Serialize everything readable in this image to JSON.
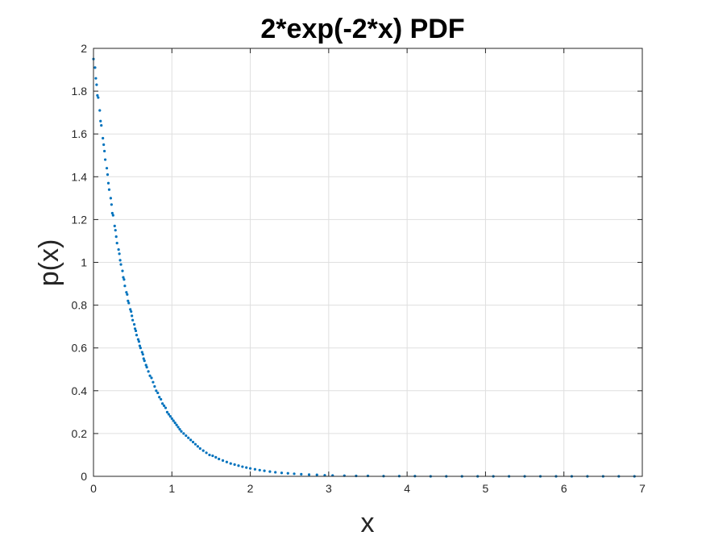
{
  "chart_data": {
    "type": "scatter",
    "title": "2*exp(-2*x) PDF",
    "xlabel": "x",
    "ylabel": "p(x)",
    "xlim": [
      0,
      7
    ],
    "ylim": [
      0,
      2
    ],
    "xticks": [
      0,
      1,
      2,
      3,
      4,
      5,
      6,
      7
    ],
    "yticks": [
      0,
      0.2,
      0.4,
      0.6,
      0.8,
      1,
      1.2,
      1.4,
      1.6,
      1.8,
      2
    ],
    "xtick_labels": [
      "0",
      "1",
      "2",
      "3",
      "4",
      "5",
      "6",
      "7"
    ],
    "ytick_labels": [
      "0",
      "0.2",
      "0.4",
      "0.6",
      "0.8",
      "1",
      "1.2",
      "1.4",
      "1.6",
      "1.8",
      "2"
    ],
    "grid": true,
    "legend": "none",
    "marker_color": "#0072BD",
    "series": [
      {
        "points": [
          [
            0.0,
            1.95
          ],
          [
            0.02,
            1.91
          ],
          [
            0.03,
            1.86
          ],
          [
            0.04,
            1.83
          ],
          [
            0.05,
            1.78
          ],
          [
            0.06,
            1.77
          ],
          [
            0.08,
            1.71
          ],
          [
            0.09,
            1.66
          ],
          [
            0.1,
            1.64
          ],
          [
            0.12,
            1.58
          ],
          [
            0.13,
            1.55
          ],
          [
            0.14,
            1.52
          ],
          [
            0.15,
            1.48
          ],
          [
            0.17,
            1.44
          ],
          [
            0.18,
            1.41
          ],
          [
            0.19,
            1.37
          ],
          [
            0.2,
            1.34
          ],
          [
            0.22,
            1.3
          ],
          [
            0.23,
            1.27
          ],
          [
            0.24,
            1.23
          ],
          [
            0.25,
            1.22
          ],
          [
            0.27,
            1.17
          ],
          [
            0.28,
            1.15
          ],
          [
            0.29,
            1.12
          ],
          [
            0.3,
            1.09
          ],
          [
            0.32,
            1.06
          ],
          [
            0.33,
            1.04
          ],
          [
            0.34,
            1.01
          ],
          [
            0.35,
            0.99
          ],
          [
            0.37,
            0.96
          ],
          [
            0.38,
            0.93
          ],
          [
            0.39,
            0.92
          ],
          [
            0.4,
            0.89
          ],
          [
            0.42,
            0.86
          ],
          [
            0.43,
            0.85
          ],
          [
            0.44,
            0.82
          ],
          [
            0.45,
            0.81
          ],
          [
            0.47,
            0.78
          ],
          [
            0.48,
            0.77
          ],
          [
            0.49,
            0.75
          ],
          [
            0.5,
            0.73
          ],
          [
            0.52,
            0.71
          ],
          [
            0.53,
            0.69
          ],
          [
            0.54,
            0.68
          ],
          [
            0.55,
            0.66
          ],
          [
            0.57,
            0.64
          ],
          [
            0.58,
            0.63
          ],
          [
            0.59,
            0.61
          ],
          [
            0.6,
            0.6
          ],
          [
            0.62,
            0.58
          ],
          [
            0.63,
            0.57
          ],
          [
            0.64,
            0.55
          ],
          [
            0.65,
            0.54
          ],
          [
            0.67,
            0.52
          ],
          [
            0.68,
            0.51
          ],
          [
            0.7,
            0.49
          ],
          [
            0.72,
            0.47
          ],
          [
            0.74,
            0.46
          ],
          [
            0.76,
            0.44
          ],
          [
            0.78,
            0.42
          ],
          [
            0.8,
            0.4
          ],
          [
            0.82,
            0.39
          ],
          [
            0.84,
            0.37
          ],
          [
            0.86,
            0.36
          ],
          [
            0.88,
            0.34
          ],
          [
            0.9,
            0.33
          ],
          [
            0.92,
            0.32
          ],
          [
            0.94,
            0.3
          ],
          [
            0.96,
            0.29
          ],
          [
            0.98,
            0.28
          ],
          [
            1.0,
            0.27
          ],
          [
            1.02,
            0.26
          ],
          [
            1.04,
            0.25
          ],
          [
            1.06,
            0.24
          ],
          [
            1.08,
            0.23
          ],
          [
            1.1,
            0.22
          ],
          [
            1.12,
            0.21
          ],
          [
            1.15,
            0.2
          ],
          [
            1.18,
            0.19
          ],
          [
            1.21,
            0.18
          ],
          [
            1.24,
            0.17
          ],
          [
            1.27,
            0.16
          ],
          [
            1.3,
            0.15
          ],
          [
            1.33,
            0.14
          ],
          [
            1.36,
            0.13
          ],
          [
            1.4,
            0.12
          ],
          [
            1.44,
            0.11
          ],
          [
            1.48,
            0.1
          ],
          [
            1.52,
            0.096
          ],
          [
            1.56,
            0.089
          ],
          [
            1.6,
            0.081
          ],
          [
            1.65,
            0.074
          ],
          [
            1.7,
            0.067
          ],
          [
            1.75,
            0.06
          ],
          [
            1.8,
            0.055
          ],
          [
            1.85,
            0.05
          ],
          [
            1.9,
            0.045
          ],
          [
            1.95,
            0.041
          ],
          [
            2.0,
            0.037
          ],
          [
            2.06,
            0.033
          ],
          [
            2.12,
            0.029
          ],
          [
            2.18,
            0.026
          ],
          [
            2.25,
            0.022
          ],
          [
            2.32,
            0.019
          ],
          [
            2.4,
            0.016
          ],
          [
            2.48,
            0.014
          ],
          [
            2.56,
            0.012
          ],
          [
            2.65,
            0.01
          ],
          [
            2.75,
            0.008
          ],
          [
            2.85,
            0.007
          ],
          [
            2.95,
            0.005
          ],
          [
            3.05,
            0.004
          ],
          [
            3.2,
            0.003
          ],
          [
            3.35,
            0.002
          ],
          [
            3.5,
            0.002
          ],
          [
            3.7,
            0.001
          ],
          [
            3.9,
            0.001
          ],
          [
            4.1,
            0.001
          ],
          [
            4.3,
            0.0
          ],
          [
            4.5,
            0.0
          ],
          [
            4.7,
            0.0
          ],
          [
            4.9,
            0.0
          ],
          [
            5.1,
            0.0
          ],
          [
            5.3,
            0.0
          ],
          [
            5.5,
            0.0
          ],
          [
            5.7,
            0.0
          ],
          [
            5.9,
            0.0
          ],
          [
            6.1,
            0.0
          ],
          [
            6.3,
            0.0
          ],
          [
            6.5,
            0.0
          ],
          [
            6.7,
            0.0
          ],
          [
            6.9,
            0.0
          ]
        ]
      }
    ]
  }
}
